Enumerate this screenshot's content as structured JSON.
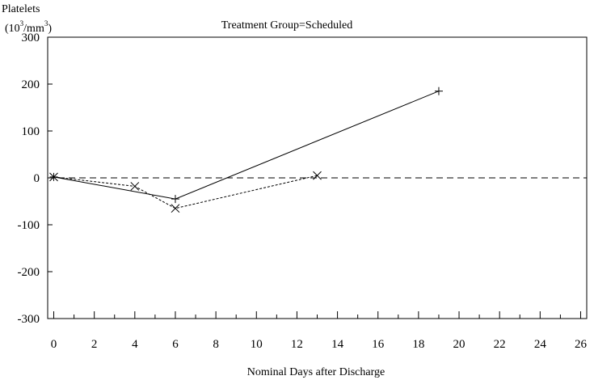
{
  "chart_data": {
    "type": "line",
    "title": "Treatment Group=Scheduled",
    "ylabel": {
      "line1": "Platelets",
      "line2_base": "(10",
      "line2_sup1": "3",
      "line2_mid": "/mm",
      "line2_sup2": "3",
      "line2_end": ")"
    },
    "xlabel": "Nominal Days after Discharge",
    "xlim": [
      -0.3,
      26.3
    ],
    "ylim": [
      -300,
      300
    ],
    "xticks": [
      0,
      2,
      4,
      6,
      8,
      10,
      12,
      14,
      16,
      18,
      20,
      22,
      24,
      26
    ],
    "yticks": [
      300,
      200,
      100,
      0,
      -100,
      -200,
      -300
    ],
    "reference_line": {
      "y": 0,
      "style": "dashed"
    },
    "series": [
      {
        "marker": "plus",
        "line_style": "solid",
        "x": [
          0,
          6,
          19
        ],
        "y": [
          2,
          -45,
          185
        ]
      },
      {
        "marker": "x",
        "line_style": "dotted",
        "x": [
          0,
          4,
          6,
          13
        ],
        "y": [
          2,
          -18,
          -65,
          5
        ]
      }
    ]
  }
}
